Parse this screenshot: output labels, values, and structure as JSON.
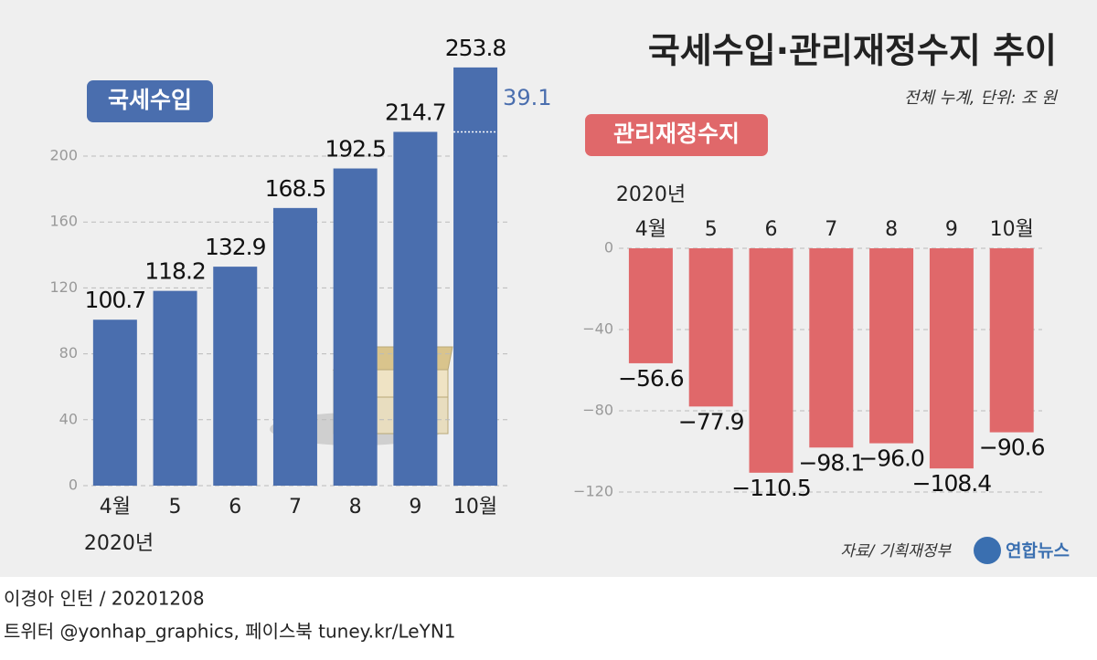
{
  "title": "국세수입·관리재정수지 추이",
  "subtitle": "전체 누계, 단위: 조 원",
  "chart_data": [
    {
      "type": "bar",
      "title": "국세수입",
      "color": "#4a6eae",
      "categories": [
        "4월",
        "5",
        "6",
        "7",
        "8",
        "9",
        "10월"
      ],
      "values": [
        100.7,
        118.2,
        132.9,
        168.5,
        192.5,
        214.7,
        253.8
      ],
      "ylim": [
        0,
        260
      ],
      "yticks": [
        0,
        40,
        80,
        120,
        160,
        200
      ],
      "grid": true,
      "year_label": "2020년",
      "annotation": "39.1"
    },
    {
      "type": "bar",
      "title": "관리재정수지",
      "color": "#e0686a",
      "categories": [
        "4월",
        "5",
        "6",
        "7",
        "8",
        "9",
        "10월"
      ],
      "values": [
        -56.6,
        -77.9,
        -110.5,
        -98.1,
        -96.0,
        -108.4,
        -90.6
      ],
      "value_labels": [
        "−56.6",
        "−77.9",
        "−110.5",
        "−98.1",
        "−96.0",
        "−108.4",
        "−90.6"
      ],
      "ylim": [
        -125,
        0
      ],
      "yticks": [
        0,
        {
          "value": -40,
          "label": "−40"
        },
        {
          "value": -80,
          "label": "−80"
        },
        {
          "value": -120,
          "label": "−120"
        }
      ],
      "grid": true,
      "year_label": "2020년"
    }
  ],
  "source": "자료/ 기획재정부",
  "logo": "연합뉴스",
  "footer": [
    "이경아 인턴 / 20201208",
    "트위터 @yonhap_graphics, 페이스북 tuney.kr/LeYN1"
  ]
}
